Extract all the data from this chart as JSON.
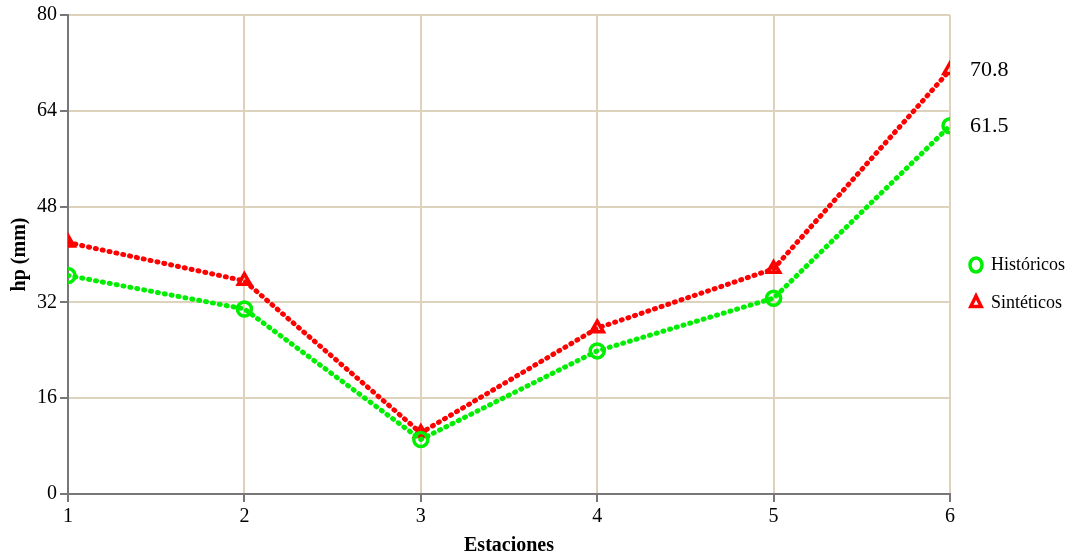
{
  "chart_data": {
    "type": "line",
    "xlabel": "Estaciones",
    "ylabel": "hp (mm)",
    "x": [
      1,
      2,
      3,
      4,
      5,
      6
    ],
    "xlim": [
      1,
      6
    ],
    "xticks": [
      1,
      2,
      3,
      4,
      5,
      6
    ],
    "ylim": [
      0,
      80
    ],
    "yticks": [
      0,
      16,
      32,
      48,
      64,
      80
    ],
    "grid": true,
    "legend": "right",
    "line_style": "dotted",
    "series": [
      {
        "name": "Históricos",
        "color": "#00ee00",
        "marker": "circle",
        "values": [
          36.5,
          30.9,
          9.1,
          23.9,
          32.7,
          61.5
        ],
        "value_labels": [
          null,
          null,
          null,
          null,
          null,
          "61.5"
        ]
      },
      {
        "name": "Sintéticos",
        "color": "#ff0000",
        "marker": "triangle",
        "values": [
          42.0,
          35.6,
          10.2,
          27.7,
          37.6,
          70.8
        ],
        "value_labels": [
          null,
          null,
          null,
          null,
          null,
          "70.8"
        ]
      }
    ]
  }
}
